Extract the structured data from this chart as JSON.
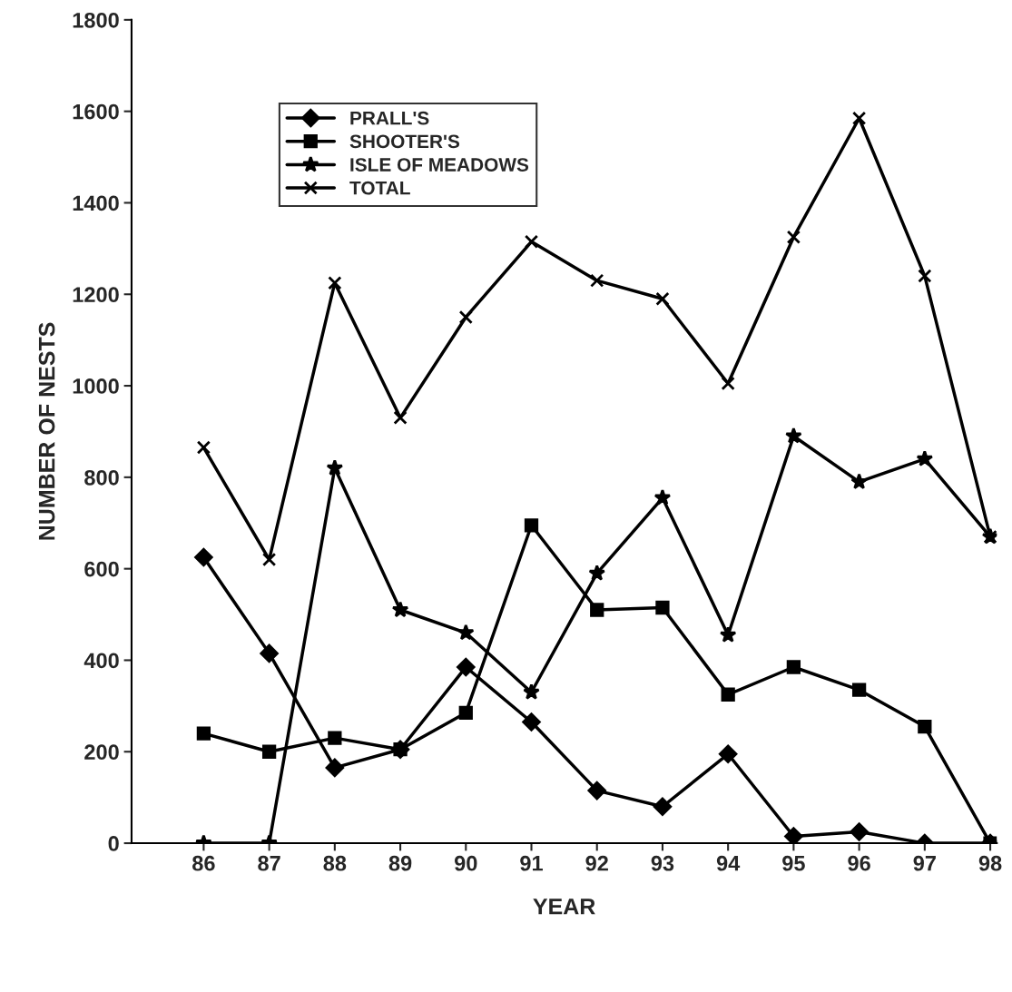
{
  "chart_data": {
    "type": "line",
    "xlabel": "YEAR",
    "ylabel": "NUMBER OF NESTS",
    "categories": [
      "86",
      "87",
      "88",
      "89",
      "90",
      "91",
      "92",
      "93",
      "94",
      "95",
      "96",
      "97",
      "98"
    ],
    "series": [
      {
        "name": "PRALL'S",
        "color": "#000000",
        "marker": "diamond",
        "values": [
          625,
          415,
          165,
          205,
          385,
          265,
          115,
          80,
          195,
          15,
          25,
          0,
          0
        ]
      },
      {
        "name": "SHOOTER'S",
        "color": "#000000",
        "marker": "square",
        "values": [
          240,
          200,
          230,
          205,
          285,
          695,
          510,
          515,
          325,
          385,
          335,
          255,
          0
        ]
      },
      {
        "name": "ISLE OF MEADOWS",
        "color": "#000000",
        "marker": "star",
        "values": [
          0,
          0,
          820,
          510,
          460,
          330,
          590,
          755,
          455,
          890,
          790,
          840,
          670
        ]
      },
      {
        "name": "TOTAL",
        "color": "#000000",
        "marker": "cross",
        "values": [
          865,
          620,
          1225,
          930,
          1150,
          1315,
          1230,
          1190,
          1005,
          1325,
          1585,
          1240,
          670
        ]
      }
    ],
    "ylim": [
      0,
      1800
    ],
    "yticks": [
      0,
      200,
      400,
      600,
      800,
      1000,
      1200,
      1400,
      1600,
      1800
    ],
    "grid": false,
    "legend": "top left",
    "line_style": "solid"
  }
}
